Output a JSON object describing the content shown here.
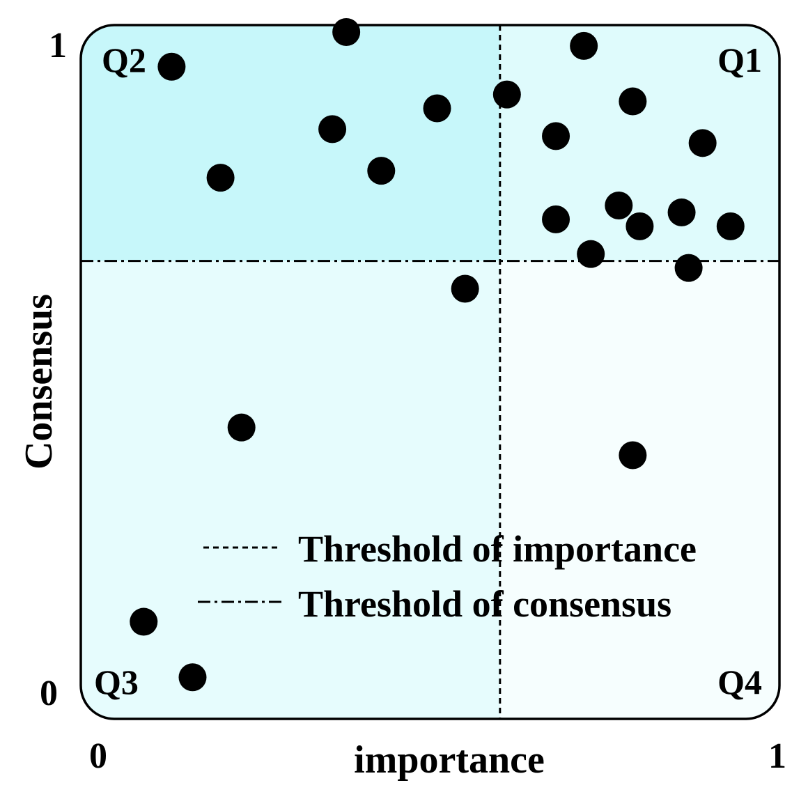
{
  "colors": {
    "q1": "#dffbfc",
    "q2": "#c7f7fa",
    "q3": "#e6fcfd",
    "q4": "#f6fefe",
    "border": "#000000",
    "point": "#000000"
  },
  "chart_data": {
    "type": "scatter",
    "title": "",
    "xlabel": "importance",
    "ylabel": "Consensus",
    "xlim": [
      0,
      1
    ],
    "ylim": [
      0,
      1
    ],
    "x_ticks": [
      "0",
      "1"
    ],
    "y_ticks": [
      "0",
      "1"
    ],
    "threshold_importance": 0.6,
    "threshold_consensus": 0.66,
    "quadrant_labels": {
      "q1": "Q1",
      "q2": "Q2",
      "q3": "Q3",
      "q4": "Q4"
    },
    "legend": {
      "position": "lower-right",
      "entries": [
        {
          "label": "Threshold of importance",
          "style": "dashed"
        },
        {
          "label": "Threshold of consensus",
          "style": "dash-dot"
        }
      ]
    },
    "grid": false,
    "points": [
      {
        "x": 0.13,
        "y": 0.94
      },
      {
        "x": 0.38,
        "y": 0.99
      },
      {
        "x": 0.36,
        "y": 0.85
      },
      {
        "x": 0.51,
        "y": 0.88
      },
      {
        "x": 0.43,
        "y": 0.79
      },
      {
        "x": 0.2,
        "y": 0.78
      },
      {
        "x": 0.61,
        "y": 0.9
      },
      {
        "x": 0.72,
        "y": 0.97
      },
      {
        "x": 0.79,
        "y": 0.89
      },
      {
        "x": 0.68,
        "y": 0.84
      },
      {
        "x": 0.89,
        "y": 0.83
      },
      {
        "x": 0.77,
        "y": 0.74
      },
      {
        "x": 0.86,
        "y": 0.73
      },
      {
        "x": 0.68,
        "y": 0.72
      },
      {
        "x": 0.8,
        "y": 0.71
      },
      {
        "x": 0.93,
        "y": 0.71
      },
      {
        "x": 0.73,
        "y": 0.67
      },
      {
        "x": 0.87,
        "y": 0.65
      },
      {
        "x": 0.55,
        "y": 0.62
      },
      {
        "x": 0.23,
        "y": 0.42
      },
      {
        "x": 0.79,
        "y": 0.38
      },
      {
        "x": 0.09,
        "y": 0.14
      },
      {
        "x": 0.16,
        "y": 0.06
      }
    ]
  }
}
